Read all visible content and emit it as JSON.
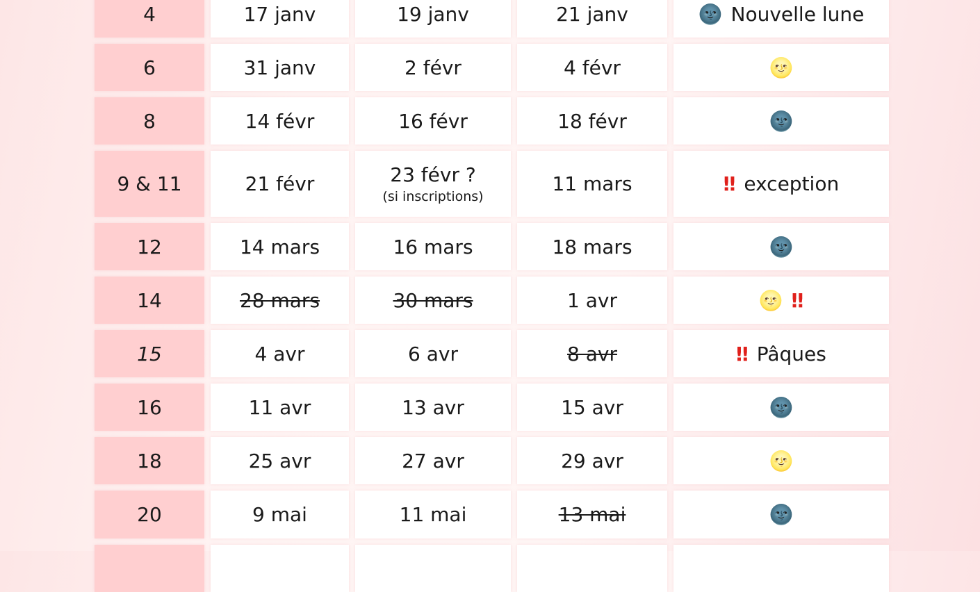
{
  "rows": [
    {
      "week": "4",
      "d1": "17 janv",
      "d2": "19 janv",
      "d3": "21 janv",
      "note": {
        "icon": "new-moon-face",
        "text": "Nouvelle lune"
      }
    },
    {
      "week": "6",
      "d1": "31 janv",
      "d2": "2 févr",
      "d3": "4 févr",
      "note": {
        "icon": "full-moon-face",
        "text": ""
      }
    },
    {
      "week": "8",
      "d1": "14 févr",
      "d2": "16 févr",
      "d3": "18 févr",
      "note": {
        "icon": "new-moon-face",
        "text": ""
      }
    },
    {
      "week": "9 & 11",
      "d1": "21 févr",
      "d2": "23 févr ?",
      "d2_sub": "(si inscriptions)",
      "d3": "11 mars",
      "note": {
        "icon": "double-exclamation",
        "text": "exception"
      }
    },
    {
      "week": "12",
      "d1": "14 mars",
      "d2": "16 mars",
      "d3": "18 mars",
      "note": {
        "icon": "new-moon-face",
        "text": ""
      }
    },
    {
      "week": "14",
      "d1": "28 mars",
      "d1_struck": true,
      "d2": "30 mars",
      "d2_struck": true,
      "d3": "1 avr",
      "note": {
        "icon": "full-moon-face",
        "icon2": "double-exclamation",
        "text": ""
      }
    },
    {
      "week": "15",
      "week_italic": true,
      "d1": "4 avr",
      "d2": "6 avr",
      "d3": "8 avr",
      "d3_struck": true,
      "note": {
        "icon": "double-exclamation",
        "text": "Pâques"
      }
    },
    {
      "week": "16",
      "d1": "11 avr",
      "d2": "13 avr",
      "d3": "15 avr",
      "note": {
        "icon": "new-moon-face",
        "text": ""
      }
    },
    {
      "week": "18",
      "d1": "25 avr",
      "d2": "27 avr",
      "d3": "29 avr",
      "note": {
        "icon": "full-moon-face",
        "text": ""
      }
    },
    {
      "week": "20",
      "d1": "9 mai",
      "d2": "11 mai",
      "d3": "13 mai",
      "d3_struck": true,
      "note": {
        "icon": "new-moon-face",
        "text": ""
      }
    },
    {
      "week": "",
      "d1": "",
      "d2": "",
      "d3": "",
      "note": {
        "icon": "",
        "text": ""
      }
    }
  ],
  "colors": {
    "week_bg": "#ffcfd0",
    "cell_bg": "#ffffff",
    "alert": "#e0201b"
  }
}
